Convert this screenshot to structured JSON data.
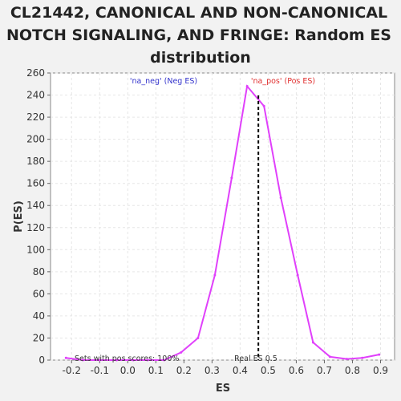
{
  "chart_data": {
    "type": "line",
    "title_lines": [
      "CL21442, CANONICAL AND NON-CANONICAL",
      "NOTCH SIGNALING, AND FRINGE: Random ES",
      "distribution"
    ],
    "xlabel": "ES",
    "ylabel": "P(ES)",
    "xlim": [
      -0.275,
      0.95
    ],
    "ylim": [
      0,
      260
    ],
    "xticks": [
      "-0.2",
      "-0.1",
      "0.0",
      "0.1",
      "0.2",
      "0.3",
      "0.4",
      "0.5",
      "0.6",
      "0.7",
      "0.8",
      "0.9"
    ],
    "yticks": [
      "0",
      "20",
      "40",
      "60",
      "80",
      "100",
      "120",
      "140",
      "160",
      "180",
      "200",
      "220",
      "240",
      "260"
    ],
    "grid": true,
    "line_color": "#e040fb",
    "series": [
      {
        "x": [
          -0.22,
          -0.16,
          -0.1,
          -0.04,
          0.02,
          0.07,
          0.13,
          0.19,
          0.25,
          0.31,
          0.37,
          0.425,
          0.485,
          0.545,
          0.605,
          0.66,
          0.72,
          0.78,
          0.835,
          0.895
        ],
        "values": [
          2,
          0,
          0,
          0,
          0,
          0,
          0,
          7,
          20,
          77,
          165,
          248,
          230,
          147,
          77,
          16,
          3,
          1,
          2,
          5
        ]
      }
    ],
    "real_es": {
      "x": 0.465,
      "label": "Real ES 0.5",
      "color": "#000000"
    },
    "annotations": {
      "neg": {
        "text": "'na_neg' (Neg ES)",
        "color": "#3333cc"
      },
      "pos": {
        "text": "'na_pos' (Pos ES)",
        "color": "#e03030"
      },
      "sets": {
        "text": "Sets with pos scores: 100%",
        "color": "#333333"
      }
    }
  }
}
